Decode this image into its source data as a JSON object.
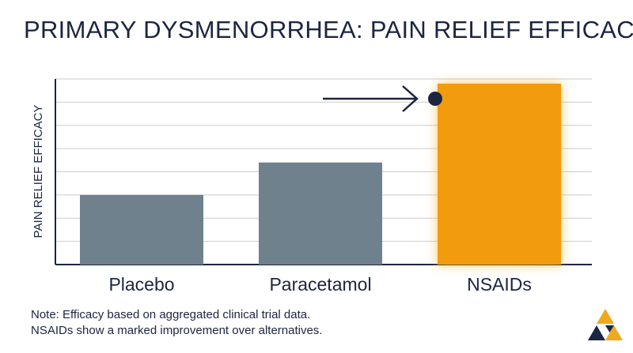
{
  "title": "PRIMARY DYSMENORRHEA: PAIN RELIEF EFFICACY",
  "note": {
    "line1": "Note: Efficacy based on aggregated clinical trial data.",
    "line2": "NSAIDs show a marked improvement over alternatives."
  },
  "colors": {
    "text": "#1c2541",
    "bar_neutral": "#6f818c",
    "bar_highlight": "#f29b0c",
    "grid": "#c8cbce",
    "logo_gold": "#f2a81d",
    "logo_navy": "#1c2541"
  },
  "icons": {
    "logo": "triangle-logo-icon",
    "marker": "arrow-right-icon"
  },
  "chart_data": {
    "type": "bar",
    "title": "PRIMARY DYSMENORRHEA: PAIN RELIEF EFFICACY",
    "xlabel": "",
    "ylabel": "PAIN RELIEF EFFICACY",
    "categories": [
      "Placebo",
      "Paracetamol",
      "NSAIDs"
    ],
    "values": [
      30,
      44,
      78
    ],
    "ylim": [
      0,
      80
    ],
    "grid": true,
    "y_tick_labels_shown": false,
    "highlight": "NSAIDs",
    "annotation": "arrow pointing to top of NSAIDs bar"
  }
}
